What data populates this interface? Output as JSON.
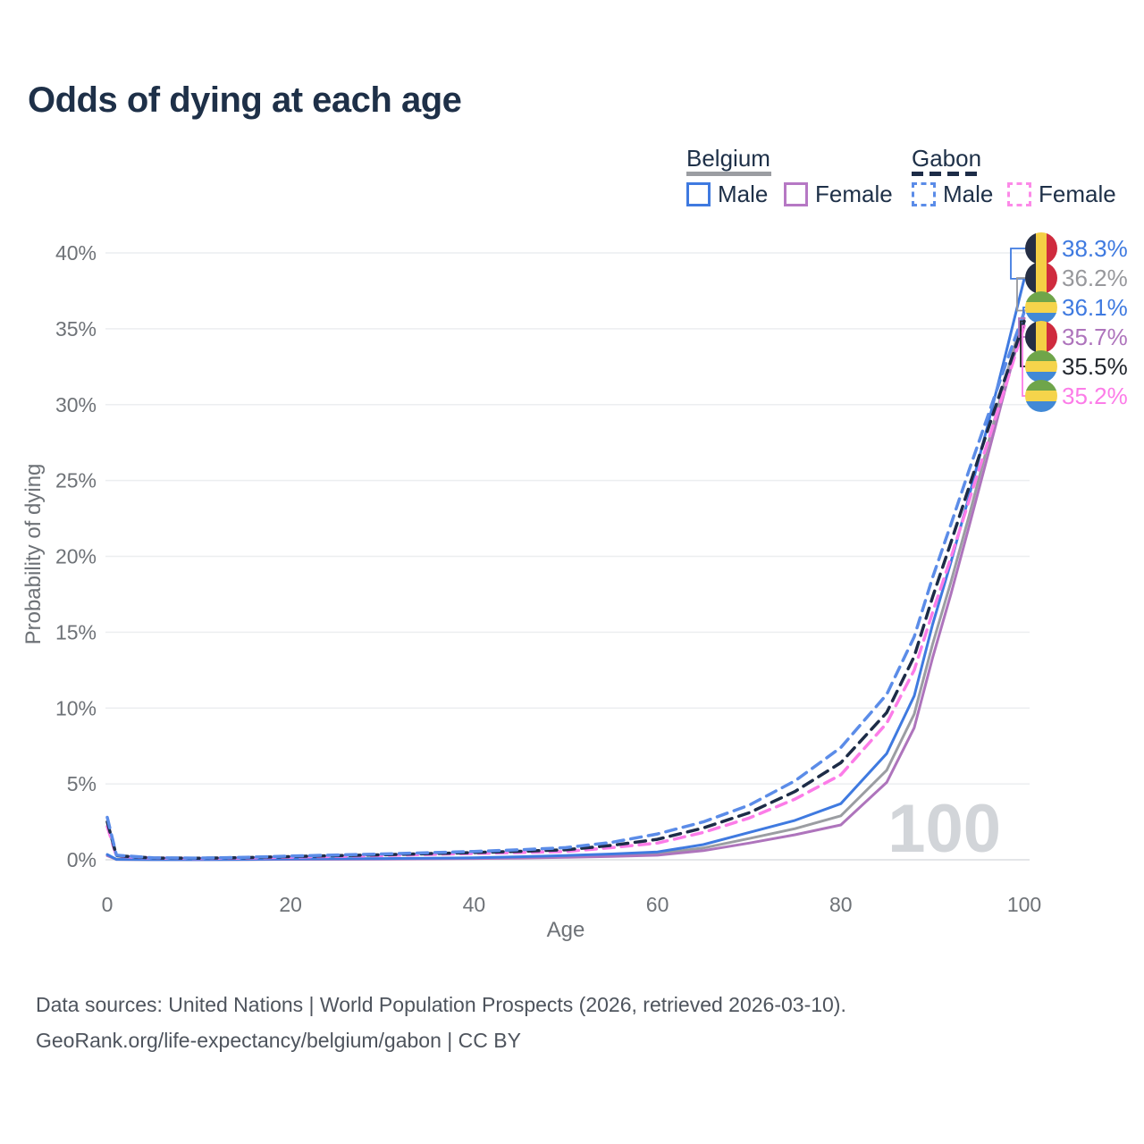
{
  "title": "Odds of dying at each age",
  "legend": {
    "groups": [
      {
        "name": "Belgium",
        "line_style": "solid",
        "line_color": "#9b9da2",
        "items": [
          {
            "label": "Male",
            "color": "#3f7ae0"
          },
          {
            "label": "Female",
            "color": "#b678c4"
          }
        ]
      },
      {
        "name": "Gabon",
        "line_style": "dashed",
        "line_color": "#1d2c47",
        "items": [
          {
            "label": "Male",
            "color": "#5b8ce8"
          },
          {
            "label": "Female",
            "color": "#fc8ae8"
          }
        ]
      }
    ]
  },
  "axes": {
    "x_label": "Age",
    "y_label": "Probability of dying",
    "x_ticks": [
      {
        "label": "0",
        "value": 0
      },
      {
        "label": "20",
        "value": 20
      },
      {
        "label": "40",
        "value": 40
      },
      {
        "label": "60",
        "value": 60
      },
      {
        "label": "80",
        "value": 80
      },
      {
        "label": "100",
        "value": 100
      }
    ],
    "y_ticks": [
      {
        "label": "0%",
        "value": 0
      },
      {
        "label": "5%",
        "value": 5
      },
      {
        "label": "10%",
        "value": 10
      },
      {
        "label": "15%",
        "value": 15
      },
      {
        "label": "20%",
        "value": 20
      },
      {
        "label": "25%",
        "value": 25
      },
      {
        "label": "30%",
        "value": 30
      },
      {
        "label": "35%",
        "value": 35
      },
      {
        "label": "40%",
        "value": 40
      }
    ]
  },
  "watermark": {
    "value": "100",
    "color": "#d2d5d9"
  },
  "end_labels": [
    {
      "country": "Belgium",
      "flag": "be",
      "series": "Male",
      "label": "38.3%",
      "value": 38.3,
      "color": "#3f7ae0"
    },
    {
      "country": "Belgium",
      "flag": "be",
      "series": "Both sexes",
      "label": "36.2%",
      "value": 36.2,
      "color": "#97989c"
    },
    {
      "country": "Gabon",
      "flag": "ga",
      "series": "Male",
      "label": "36.1%",
      "value": 36.1,
      "color": "#3f7ae0"
    },
    {
      "country": "Belgium",
      "flag": "be",
      "series": "Female",
      "label": "35.7%",
      "value": 35.7,
      "color": "#ae74bc"
    },
    {
      "country": "Gabon",
      "flag": "ga",
      "series": "Both sexes",
      "label": "35.5%",
      "value": 35.5,
      "color": "#22272e"
    },
    {
      "country": "Gabon",
      "flag": "ga",
      "series": "Female",
      "label": "35.2%",
      "value": 35.2,
      "color": "#fc7ce8"
    }
  ],
  "footer": {
    "line1": "Data sources: United Nations | World Population Prospects (2026, retrieved 2026-03-10).",
    "line2": "GeoRank.org/life-expectancy/belgium/gabon | CC BY"
  },
  "chart_data": {
    "type": "line",
    "title": "Odds of dying at each age",
    "xlabel": "Age",
    "ylabel": "Probability of dying",
    "xlim": [
      0,
      100
    ],
    "ylim": [
      0,
      40
    ],
    "grid": "horizontal",
    "legend_position": "top-right",
    "x": [
      0,
      1,
      5,
      10,
      15,
      20,
      30,
      40,
      45,
      50,
      55,
      60,
      65,
      70,
      75,
      80,
      85,
      88,
      90,
      92,
      94,
      96,
      98,
      100
    ],
    "series": [
      {
        "name": "Belgium Both sexes",
        "country": "Belgium",
        "sex": "all",
        "color": "#9b9da2",
        "dash": false,
        "values": [
          0.3,
          0.025,
          0.01,
          0.01,
          0.022,
          0.045,
          0.06,
          0.1,
          0.15,
          0.21,
          0.29,
          0.4,
          0.78,
          1.4,
          2.05,
          2.9,
          5.9,
          9.6,
          14.2,
          18.3,
          22.7,
          27.3,
          31.8,
          36.2
        ]
      },
      {
        "name": "Belgium Female",
        "country": "Belgium",
        "sex": "female",
        "color": "#ae74bc",
        "dash": false,
        "values": [
          0.27,
          0.022,
          0.009,
          0.009,
          0.017,
          0.03,
          0.045,
          0.08,
          0.11,
          0.16,
          0.22,
          0.3,
          0.6,
          1.1,
          1.65,
          2.3,
          5.1,
          8.7,
          13.3,
          17.5,
          22.0,
          26.6,
          31.2,
          35.7
        ]
      },
      {
        "name": "Belgium Male",
        "country": "Belgium",
        "sex": "male",
        "color": "#3f7ae0",
        "dash": false,
        "values": [
          0.35,
          0.03,
          0.012,
          0.012,
          0.03,
          0.06,
          0.08,
          0.13,
          0.2,
          0.28,
          0.38,
          0.52,
          1.0,
          1.8,
          2.6,
          3.7,
          7.0,
          10.8,
          15.5,
          19.6,
          24.0,
          28.6,
          33.4,
          38.3
        ]
      },
      {
        "name": "Gabon Female",
        "country": "Gabon",
        "sex": "female",
        "color": "#fc7ce8",
        "dash": true,
        "values": [
          2.2,
          0.24,
          0.11,
          0.09,
          0.12,
          0.17,
          0.28,
          0.42,
          0.48,
          0.55,
          0.8,
          1.1,
          1.8,
          2.75,
          4.0,
          5.6,
          9.0,
          12.5,
          16.3,
          19.9,
          23.7,
          27.5,
          31.3,
          35.2
        ]
      },
      {
        "name": "Gabon Both sexes",
        "country": "Gabon",
        "sex": "all",
        "color": "#1d2c47",
        "dash": true,
        "values": [
          2.5,
          0.27,
          0.12,
          0.1,
          0.14,
          0.21,
          0.33,
          0.48,
          0.56,
          0.66,
          0.95,
          1.35,
          2.1,
          3.1,
          4.5,
          6.4,
          9.7,
          13.4,
          17.3,
          20.9,
          24.6,
          28.3,
          31.9,
          35.5
        ]
      },
      {
        "name": "Gabon Male",
        "country": "Gabon",
        "sex": "male",
        "color": "#5b8ce8",
        "dash": true,
        "values": [
          2.8,
          0.3,
          0.13,
          0.11,
          0.16,
          0.25,
          0.38,
          0.55,
          0.66,
          0.8,
          1.15,
          1.7,
          2.5,
          3.6,
          5.2,
          7.4,
          10.9,
          14.7,
          18.6,
          22.1,
          25.7,
          29.2,
          32.7,
          36.1
        ]
      }
    ]
  }
}
